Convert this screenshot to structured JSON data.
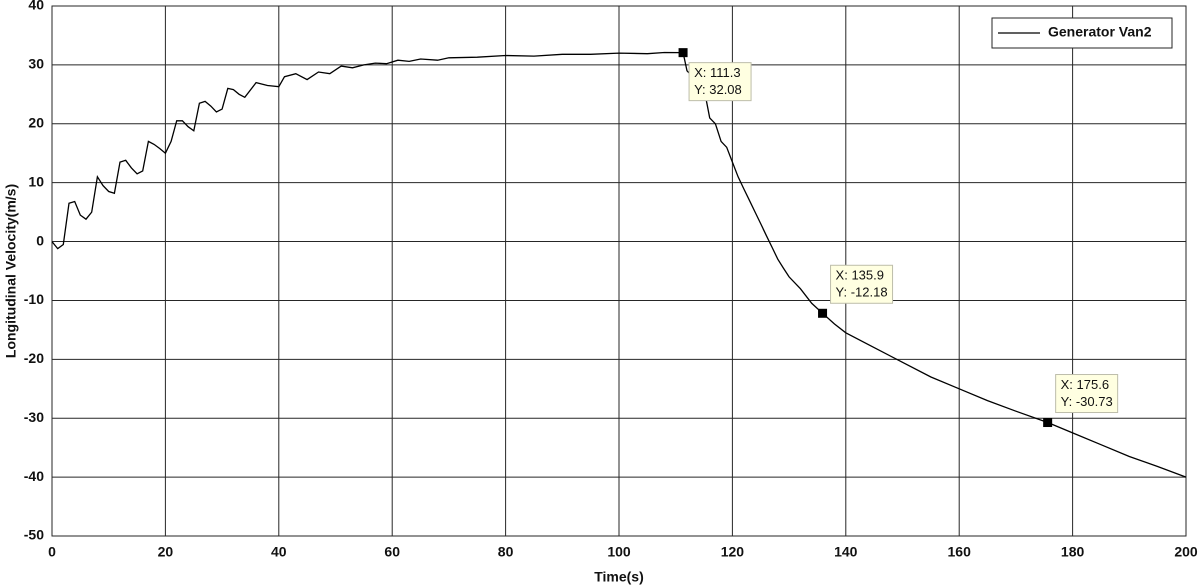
{
  "chart_data": {
    "type": "line",
    "xlabel": "Time(s)",
    "ylabel": "Longitudinal Velocity(m/s)",
    "x": [
      0,
      1,
      2,
      3,
      4,
      5,
      6,
      7,
      8,
      9,
      10,
      11,
      12,
      13,
      14,
      15,
      16,
      17,
      18,
      19,
      20,
      21,
      22,
      23,
      24,
      25,
      26,
      27,
      28,
      29,
      30,
      31,
      32,
      33,
      34,
      36,
      38,
      40,
      41,
      43,
      45,
      47,
      49,
      51,
      53,
      55,
      57,
      59,
      61,
      63,
      65,
      68,
      70,
      75,
      80,
      85,
      90,
      95,
      100,
      105,
      108,
      111.3,
      112,
      113,
      114,
      115,
      116,
      117,
      118,
      119,
      120,
      121,
      122,
      123,
      124,
      125,
      126,
      127,
      128,
      129,
      130,
      132,
      134,
      135.9,
      138,
      140,
      145,
      150,
      155,
      160,
      165,
      170,
      175.6,
      180,
      185,
      190,
      195,
      200
    ],
    "series": [
      {
        "name": "Generator Van2",
        "color": "#000000",
        "values": [
          0,
          -1.2,
          -0.5,
          6.5,
          6.8,
          4.5,
          3.8,
          5,
          11,
          9.5,
          8.5,
          8.2,
          13.5,
          13.8,
          12.5,
          11.5,
          12,
          17,
          16.5,
          15.8,
          15,
          17,
          20.5,
          20.5,
          19.5,
          18.8,
          23.5,
          23.8,
          23,
          22,
          22.5,
          26,
          25.8,
          25,
          24.5,
          27,
          26.5,
          26.3,
          28,
          28.5,
          27.5,
          28.8,
          28.5,
          29.8,
          29.5,
          30,
          30.3,
          30.2,
          30.8,
          30.6,
          31,
          30.8,
          31.2,
          31.3,
          31.6,
          31.5,
          31.8,
          31.8,
          32,
          31.9,
          32.1,
          32.08,
          29,
          28,
          25,
          26,
          21,
          20,
          17,
          16,
          13.5,
          11,
          9,
          7,
          5,
          3,
          1,
          -1,
          -3,
          -4.5,
          -6,
          -8,
          -10.5,
          -12.18,
          -14,
          -15.5,
          -18,
          -20.5,
          -23,
          -25,
          -27,
          -28.8,
          -30.73,
          -32.5,
          -34.5,
          -36.5,
          -38.2,
          -40
        ]
      }
    ],
    "annotations": [
      {
        "x": 111.3,
        "y": 32.08,
        "x_label": "X: 111.3",
        "y_label": "Y: 32.08"
      },
      {
        "x": 135.9,
        "y": -12.18,
        "x_label": "X: 135.9",
        "y_label": "Y: -12.18"
      },
      {
        "x": 175.6,
        "y": -30.73,
        "x_label": "X: 175.6",
        "y_label": "Y: -30.73"
      }
    ],
    "xlim": [
      0,
      200
    ],
    "ylim": [
      -50,
      40
    ],
    "xticks": [
      0,
      20,
      40,
      60,
      80,
      100,
      120,
      140,
      160,
      180,
      200
    ],
    "yticks": [
      -50,
      -40,
      -30,
      -20,
      -10,
      0,
      10,
      20,
      30,
      40
    ],
    "grid": true,
    "legend": "upper right"
  }
}
